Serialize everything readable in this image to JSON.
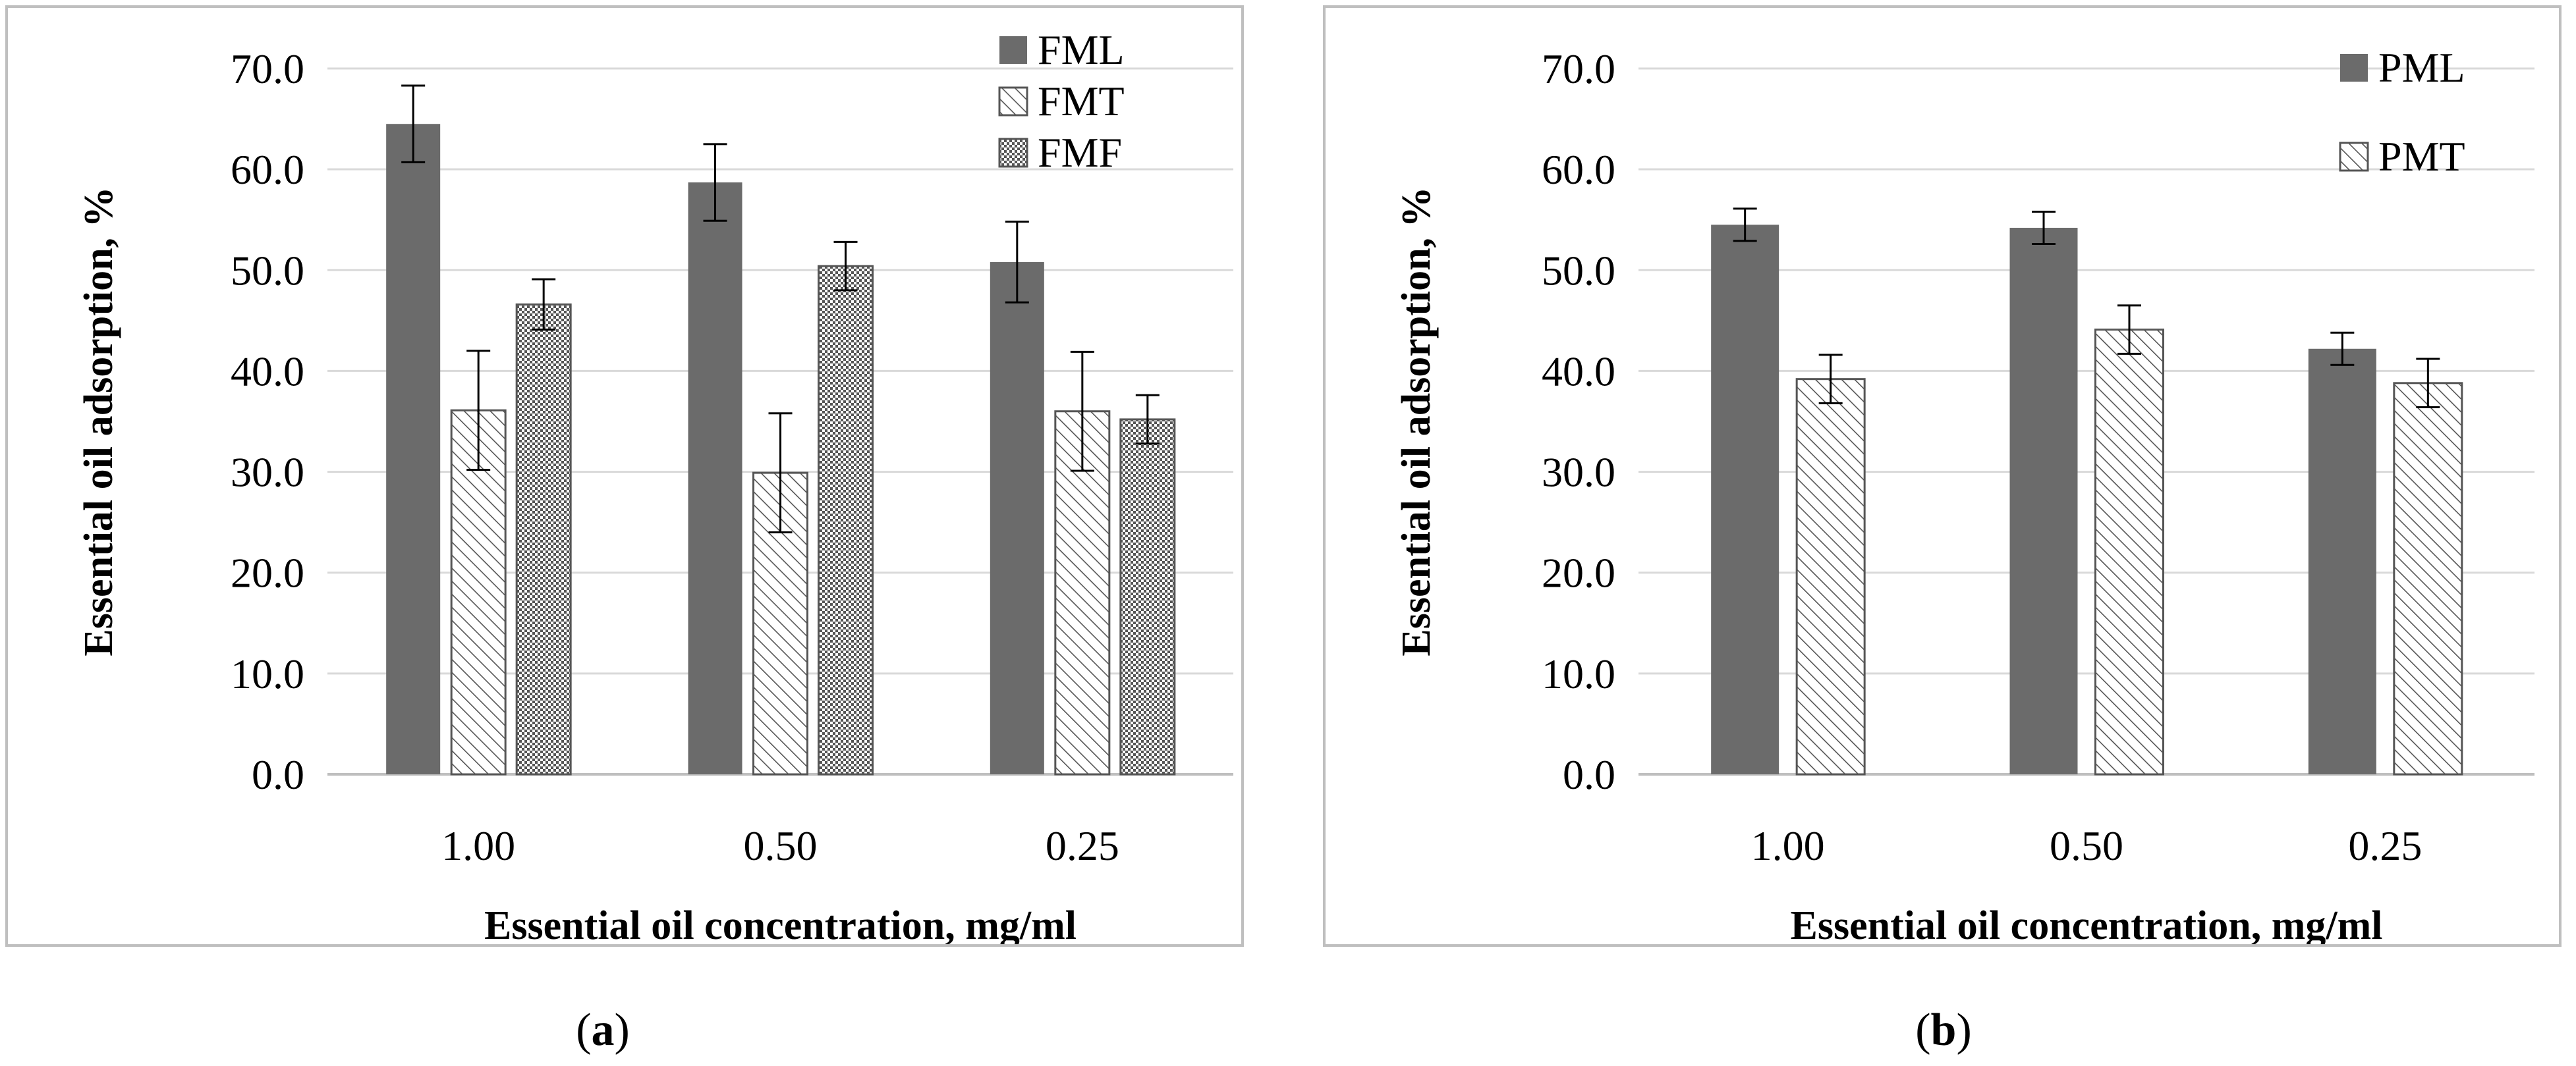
{
  "colors": {
    "dark_bar": "#6b6b6b",
    "hatch": "#555555",
    "grid": "#d9d9d9",
    "axis": "#bfbfbf",
    "text": "#000000",
    "border": "#bfbfbf"
  },
  "captions": {
    "a_letter": "a",
    "b_letter": "b"
  },
  "chart_data": [
    {
      "type": "bar",
      "panel": "a",
      "categories": [
        "1.00",
        "0.50",
        "0.25"
      ],
      "xlabel": "Essential oil concentration, mg/ml",
      "ylabel": "Essential oil adsorption, %",
      "ylim": [
        0,
        70
      ],
      "ytick_labels": [
        "0.0",
        "10.0",
        "20.0",
        "30.0",
        "40.0",
        "50.0",
        "60.0",
        "70.0"
      ],
      "grid": true,
      "legend": "top-right",
      "series": [
        {
          "name": "FML",
          "pattern": "solid",
          "values": [
            64.5,
            58.7,
            50.8
          ],
          "errors": [
            3.8,
            3.8,
            4.0
          ]
        },
        {
          "name": "FMT",
          "pattern": "diagonal",
          "values": [
            36.1,
            29.9,
            36.0
          ],
          "errors": [
            5.9,
            5.9,
            5.9
          ]
        },
        {
          "name": "FMF",
          "pattern": "dotted",
          "values": [
            46.6,
            50.4,
            35.2
          ],
          "errors": [
            2.5,
            2.4,
            2.4
          ]
        }
      ]
    },
    {
      "type": "bar",
      "panel": "b",
      "categories": [
        "1.00",
        "0.50",
        "0.25"
      ],
      "xlabel": "Essential oil concentration, mg/ml",
      "ylabel": "Essential oil adsorption, %",
      "ylim": [
        0,
        70
      ],
      "ytick_labels": [
        "0.0",
        "10.0",
        "20.0",
        "30.0",
        "40.0",
        "50.0",
        "60.0",
        "70.0"
      ],
      "grid": true,
      "legend": "top-right",
      "series": [
        {
          "name": "PML",
          "pattern": "solid",
          "values": [
            54.5,
            54.2,
            42.2
          ],
          "errors": [
            1.6,
            1.6,
            1.6
          ]
        },
        {
          "name": "PMT",
          "pattern": "diagonal",
          "values": [
            39.2,
            44.1,
            38.8
          ],
          "errors": [
            2.4,
            2.4,
            2.4
          ]
        }
      ]
    }
  ]
}
